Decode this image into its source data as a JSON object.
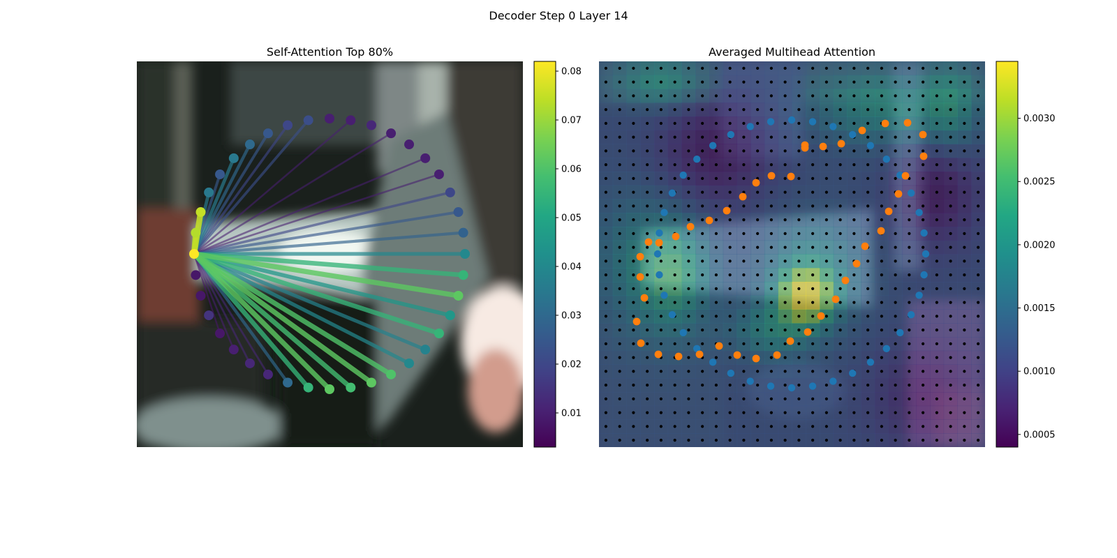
{
  "figure": {
    "suptitle": "Decoder Step 0 Layer 14"
  },
  "chart_data": [
    {
      "type": "scatter",
      "title": "Self-Attention Top 80%",
      "description": "Circular ring of 40 points over an image; lines from the query point (left) to each key point, colored by attention weight.",
      "colormap": "viridis",
      "colorbar": {
        "range": [
          0.003,
          0.082
        ],
        "ticks": [
          0.01,
          0.02,
          0.03,
          0.04,
          0.05,
          0.06,
          0.07,
          0.08
        ],
        "tick_labels": [
          "0.01",
          "0.02",
          "0.03",
          "0.04",
          "0.05",
          "0.06",
          "0.07",
          "0.08"
        ]
      },
      "query_index": 0,
      "weights": [
        0.082,
        0.073,
        0.075,
        0.035,
        0.025,
        0.035,
        0.03,
        0.025,
        0.02,
        0.022,
        0.01,
        0.01,
        0.012,
        0.01,
        0.01,
        0.01,
        0.01,
        0.02,
        0.025,
        0.028,
        0.04,
        0.055,
        0.062,
        0.045,
        0.055,
        0.038,
        0.04,
        0.06,
        0.062,
        0.058,
        0.062,
        0.055,
        0.03,
        0.012,
        0.012,
        0.01,
        0.008,
        0.015,
        0.008,
        0.008
      ],
      "drawn_lines": [
        1,
        2,
        3,
        4,
        5,
        6,
        7,
        8,
        9,
        11,
        13,
        15,
        16,
        17,
        18,
        19,
        20,
        21,
        22,
        23,
        24,
        25,
        26,
        27,
        28,
        29,
        30,
        31,
        32,
        33,
        34,
        35,
        36
      ]
    },
    {
      "type": "heatmap",
      "title": "Averaged Multihead Attention",
      "colormap": "viridis",
      "colorbar": {
        "range": [
          0.0004,
          0.00345
        ],
        "ticks": [
          0.0005,
          0.001,
          0.0015,
          0.002,
          0.0025,
          0.003
        ],
        "tick_labels": [
          "0.0005",
          "0.0010",
          "0.0015",
          "0.0020",
          "0.0025",
          "0.0030"
        ]
      },
      "grid": {
        "rows": 28,
        "cols": 28
      },
      "blue_points": [
        [
          0.3,
          0.15
        ],
        [
          0.4,
          0.16
        ],
        [
          0.5,
          0.16
        ],
        [
          0.6,
          0.16
        ],
        [
          0.7,
          0.17
        ],
        [
          0.75,
          0.19
        ],
        [
          0.85,
          0.22
        ],
        [
          0.95,
          0.25
        ],
        [
          1.08,
          0.3
        ],
        [
          1.2,
          0.36
        ],
        [
          1.28,
          0.44
        ],
        [
          1.34,
          0.52
        ],
        [
          1.38,
          0.62
        ],
        [
          1.4,
          0.72
        ],
        [
          1.4,
          0.82
        ],
        [
          1.37,
          0.92
        ],
        [
          1.34,
          1.02
        ],
        [
          1.29,
          1.1
        ],
        [
          1.22,
          1.18
        ],
        [
          1.14,
          1.25
        ],
        [
          1.05,
          1.3
        ],
        [
          0.95,
          1.34
        ],
        [
          0.85,
          1.36
        ],
        [
          0.75,
          1.38
        ],
        [
          0.65,
          1.39
        ],
        [
          0.55,
          1.37
        ],
        [
          0.46,
          1.35
        ],
        [
          0.4,
          1.32
        ],
        [
          0.34,
          1.27
        ],
        [
          0.28,
          1.2
        ],
        [
          0.22,
          1.13
        ],
        [
          0.18,
          1.05
        ],
        [
          0.15,
          0.96
        ],
        [
          0.13,
          0.87
        ],
        [
          0.13,
          0.78
        ],
        [
          0.13,
          0.68
        ],
        [
          0.15,
          0.58
        ],
        [
          0.2,
          0.49
        ],
        [
          0.25,
          0.39
        ],
        [
          0.3,
          0.3
        ]
      ],
      "orange_points": [
        [
          0.63,
          0.38
        ],
        [
          0.59,
          0.46
        ],
        [
          0.55,
          0.56
        ],
        [
          0.52,
          0.66
        ],
        [
          0.5,
          0.76
        ],
        [
          0.47,
          0.87
        ],
        [
          0.44,
          0.98
        ],
        [
          0.4,
          1.1
        ],
        [
          0.36,
          1.2
        ],
        [
          0.28,
          1.26
        ],
        [
          0.22,
          1.3
        ],
        [
          0.16,
          1.32
        ],
        [
          0.1,
          1.35
        ],
        [
          0.05,
          1.42
        ],
        [
          0.02,
          1.52
        ],
        [
          0.01,
          1.62
        ],
        [
          0.02,
          1.73
        ],
        [
          0.06,
          1.85
        ],
        [
          0.12,
          1.95
        ],
        [
          0.2,
          2.06
        ],
        [
          0.29,
          2.17
        ],
        [
          0.38,
          2.28
        ],
        [
          0.47,
          2.39
        ],
        [
          0.57,
          2.48
        ],
        [
          0.67,
          2.57
        ],
        [
          0.77,
          2.66
        ],
        [
          0.88,
          2.73
        ],
        [
          0.99,
          2.79
        ],
        [
          1.1,
          2.82
        ],
        [
          1.18,
          2.79
        ],
        [
          1.24,
          2.72
        ],
        [
          1.28,
          2.63
        ],
        [
          1.27,
          2.52
        ],
        [
          1.24,
          2.42
        ],
        [
          1.17,
          2.33
        ],
        [
          1.1,
          2.23
        ],
        [
          1.03,
          2.13
        ],
        [
          0.96,
          2.03
        ],
        [
          0.87,
          1.93
        ],
        [
          0.78,
          1.84
        ]
      ]
    }
  ]
}
